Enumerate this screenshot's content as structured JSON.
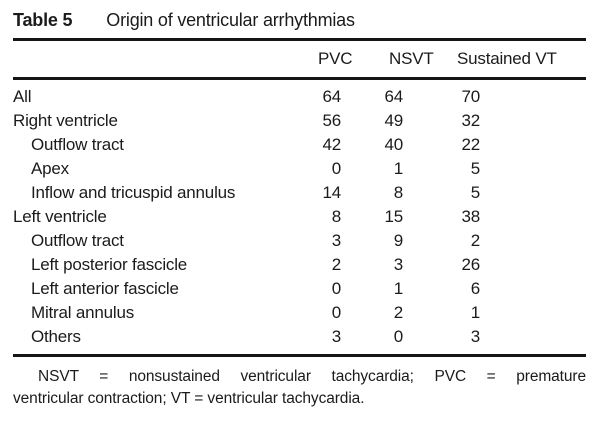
{
  "title": {
    "label": "Table 5",
    "text": "Origin of ventricular arrhythmias"
  },
  "table": {
    "columns": [
      "PVC",
      "NSVT",
      "Sustained VT"
    ],
    "rows": [
      {
        "label": "All",
        "indent": false,
        "values": [
          64,
          64,
          70
        ]
      },
      {
        "label": "Right ventricle",
        "indent": false,
        "values": [
          56,
          49,
          32
        ]
      },
      {
        "label": "Outflow tract",
        "indent": true,
        "values": [
          42,
          40,
          22
        ]
      },
      {
        "label": "Apex",
        "indent": true,
        "values": [
          0,
          1,
          5
        ]
      },
      {
        "label": "Inflow and tricuspid annulus",
        "indent": true,
        "values": [
          14,
          8,
          5
        ]
      },
      {
        "label": "Left ventricle",
        "indent": false,
        "values": [
          8,
          15,
          38
        ]
      },
      {
        "label": "Outflow tract",
        "indent": true,
        "values": [
          3,
          9,
          2
        ]
      },
      {
        "label": "Left posterior fascicle",
        "indent": true,
        "values": [
          2,
          3,
          26
        ]
      },
      {
        "label": "Left anterior fascicle",
        "indent": true,
        "values": [
          0,
          1,
          6
        ]
      },
      {
        "label": "Mitral annulus",
        "indent": true,
        "values": [
          0,
          2,
          1
        ]
      },
      {
        "label": "Others",
        "indent": true,
        "values": [
          3,
          0,
          3
        ]
      }
    ]
  },
  "footnote": {
    "full_text": "NSVT = nonsustained ventricular tachycardia; PVC = premature ventricular contraction; VT = ventricular tachycardia.",
    "lines": [
      "NSVT = nonsustained ventricular tachycardia; PVC = premature",
      "ventricular contraction; VT = ventricular tachycardia."
    ]
  },
  "colors": {
    "text": "#1b1b1b",
    "rule": "#151515",
    "background": "#ffffff"
  }
}
